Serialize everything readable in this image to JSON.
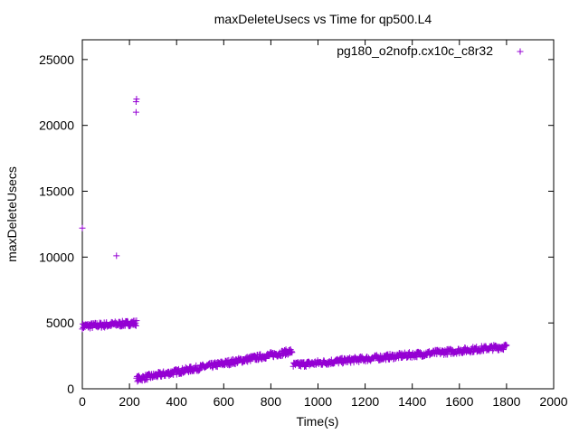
{
  "chart_data": {
    "type": "scatter",
    "title": "maxDeleteUsecs vs Time for qp500.L4",
    "xlabel": "Time(s)",
    "ylabel": "maxDeleteUsecs",
    "xlim": [
      0,
      2000
    ],
    "ylim": [
      0,
      26500
    ],
    "x_ticks": [
      "0",
      "200",
      "400",
      "600",
      "800",
      "1000",
      "1200",
      "1400",
      "1600",
      "1800",
      "2000"
    ],
    "y_ticks": [
      "0",
      "5000",
      "10000",
      "15000",
      "20000",
      "25000"
    ],
    "grid": false,
    "legend_position": "top-right",
    "marker_color": "#9400d3",
    "series": [
      {
        "name": "pg180_o2nofp.cx10c_c8r32",
        "segments": [
          {
            "x_start": 0,
            "x_end": 230,
            "y_start": 4750,
            "y_end": 5000,
            "n": 120
          },
          {
            "x_start": 230,
            "x_end": 890,
            "y_start": 750,
            "y_end": 2850,
            "n": 330
          },
          {
            "x_start": 895,
            "x_end": 1800,
            "y_start": 1800,
            "y_end": 3200,
            "n": 420
          }
        ],
        "outliers": [
          {
            "x": 0,
            "y": 12200
          },
          {
            "x": 145,
            "y": 10100
          },
          {
            "x": 228,
            "y": 21000
          },
          {
            "x": 228,
            "y": 21800
          },
          {
            "x": 230,
            "y": 22000
          }
        ]
      }
    ]
  }
}
